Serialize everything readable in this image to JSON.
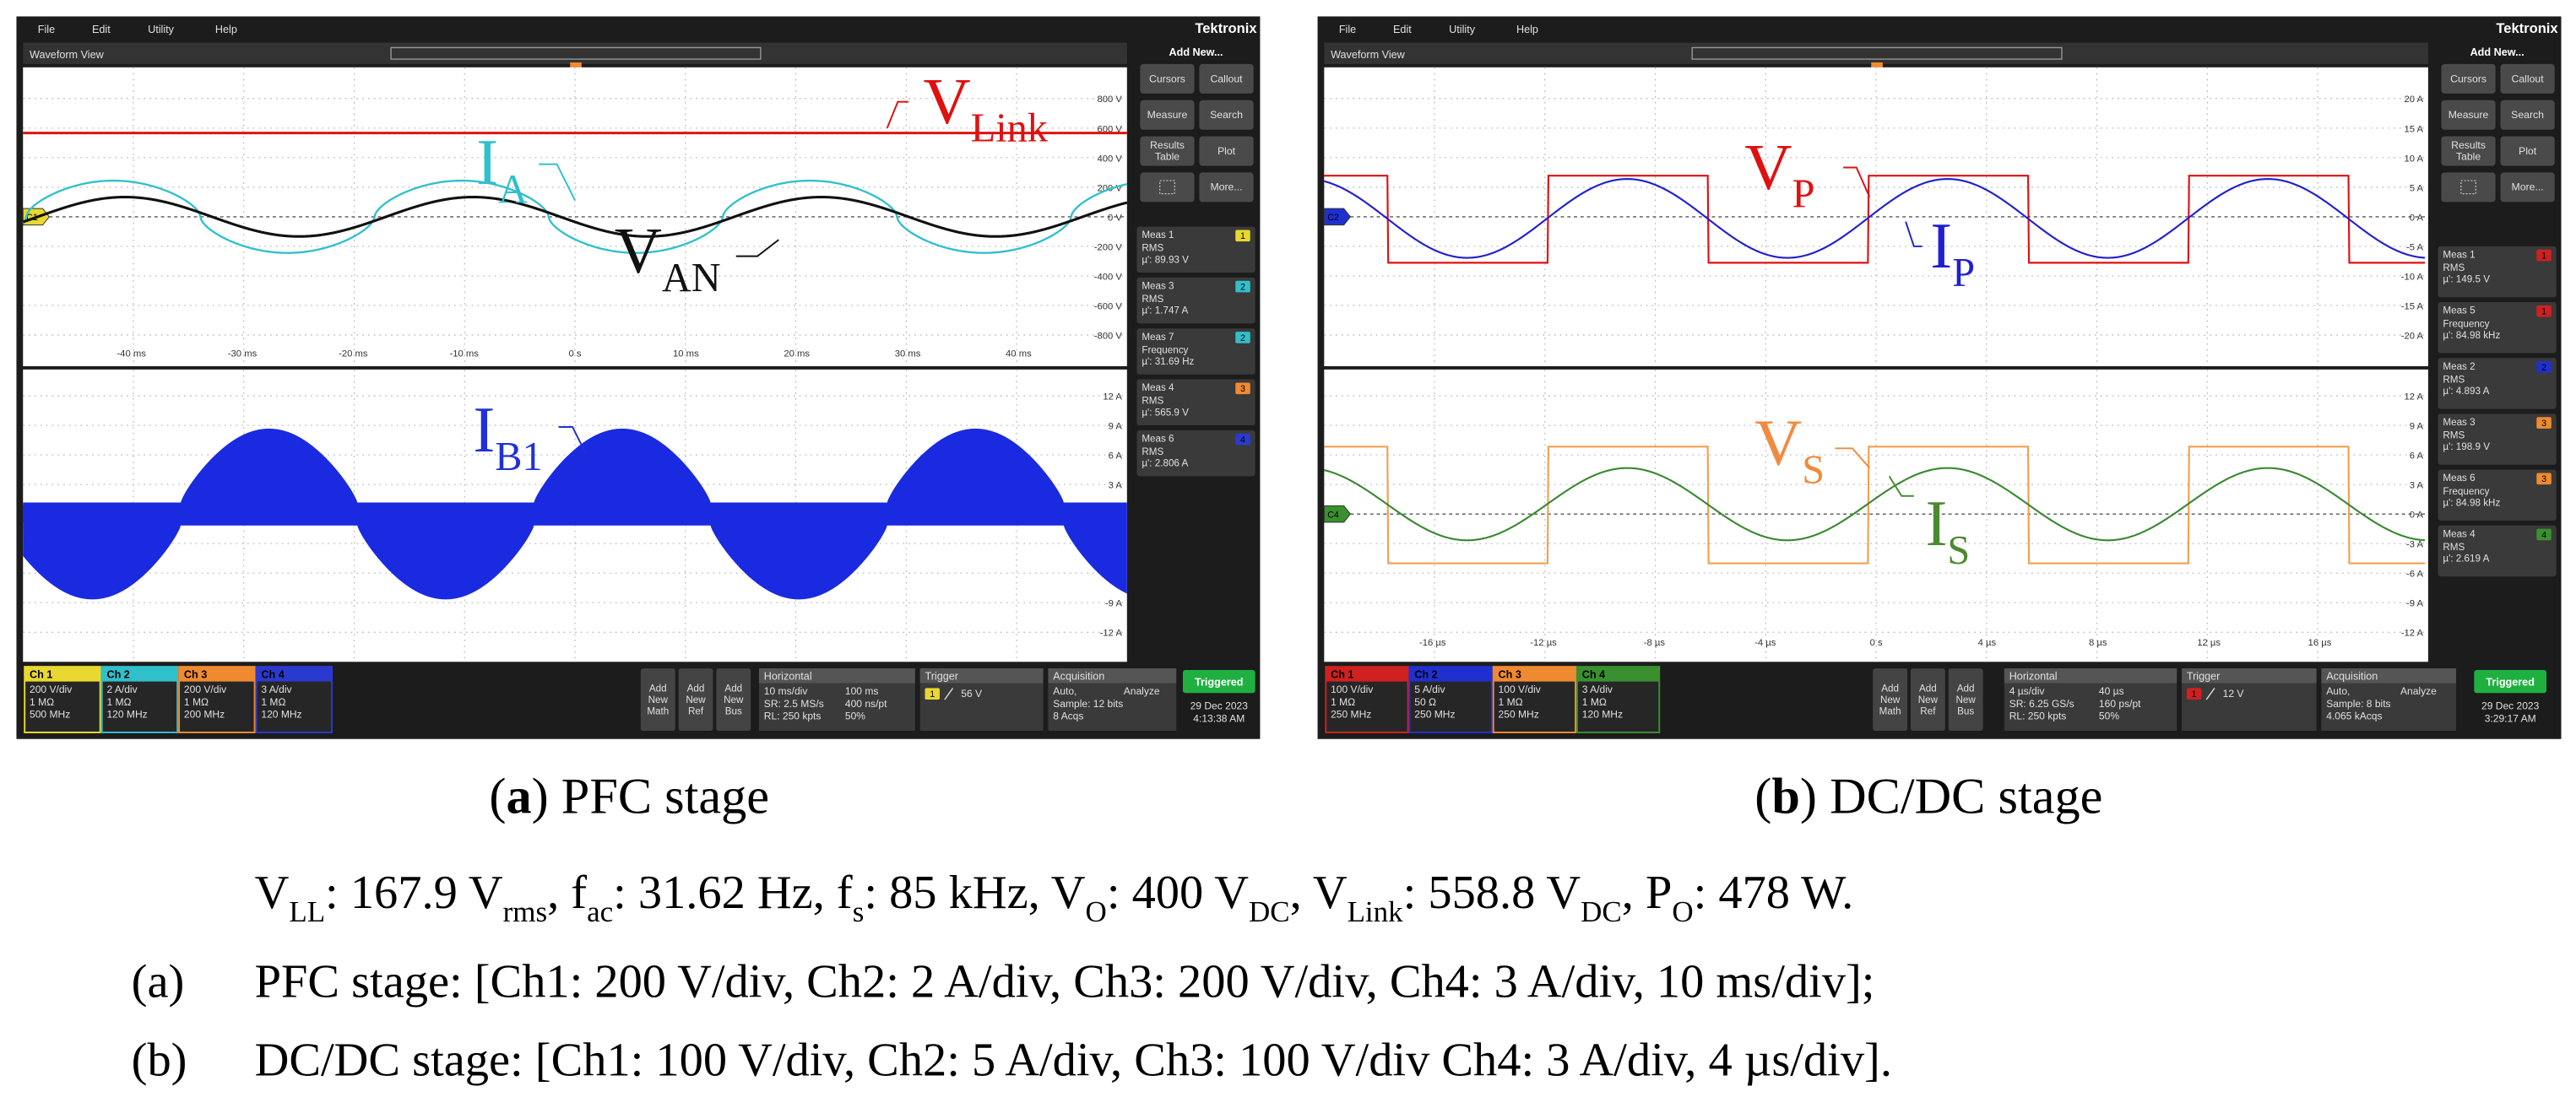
{
  "panels": [
    {
      "menu": [
        "File",
        "Edit",
        "Utility",
        "Help"
      ],
      "brand": "Tektronix",
      "view": "Waveform View",
      "upper_ticks": [
        "800 V",
        "600 V",
        "400 V",
        "200 V",
        "0 V",
        "-200 V",
        "-400 V",
        "-600 V",
        "-800 V"
      ],
      "lower_ticks": [
        "12 A",
        "9 A",
        "6 A",
        "3 A",
        "-9 A",
        "-12 A"
      ],
      "time_ticks": [
        "-40 ms",
        "-30 ms",
        "-20 ms",
        "-10 ms",
        "0 s",
        "10 ms",
        "20 ms",
        "30 ms",
        "40 ms"
      ],
      "markers": [
        "C1",
        "C4"
      ],
      "annotations": [
        [
          {
            "t": "V"
          },
          {
            "s": "Link"
          }
        ],
        [
          {
            "t": "I"
          },
          {
            "s": "A"
          }
        ],
        [
          {
            "t": "V"
          },
          {
            "s": "AN"
          }
        ],
        [
          {
            "t": "I"
          },
          {
            "s": "B1"
          }
        ]
      ],
      "add_new": "Add New...",
      "buttons": [
        [
          "Cursors"
        ],
        [
          "Callout"
        ],
        [
          "Measure"
        ],
        [
          "Search"
        ],
        [
          "Results",
          "Table"
        ],
        [
          "Plot"
        ],
        [
          "More..."
        ]
      ],
      "meas": [
        {
          "name": "Meas 1",
          "badge": "1",
          "lines": [
            "RMS",
            "µ': 89.93 V"
          ]
        },
        {
          "name": "Meas 3",
          "badge": "2",
          "lines": [
            "RMS",
            "µ': 1.747 A"
          ]
        },
        {
          "name": "Meas 7",
          "badge": "2",
          "lines": [
            "Frequency",
            "µ': 31.69 Hz"
          ]
        },
        {
          "name": "Meas 4",
          "badge": "3",
          "lines": [
            "RMS",
            "µ': 565.9 V"
          ]
        },
        {
          "name": "Meas 6",
          "badge": "4",
          "lines": [
            "RMS",
            "µ': 2.806 A"
          ]
        }
      ],
      "channels": [
        {
          "name": "Ch 1",
          "lines": [
            "200 V/div",
            "1 MΩ",
            "500 MHz"
          ]
        },
        {
          "name": "Ch 2",
          "lines": [
            "2 A/div",
            "1 MΩ",
            "120 MHz"
          ]
        },
        {
          "name": "Ch 3",
          "lines": [
            "200 V/div",
            "1 MΩ",
            "200 MHz"
          ]
        },
        {
          "name": "Ch 4",
          "lines": [
            "3 A/div",
            "1 MΩ",
            "120 MHz"
          ]
        }
      ],
      "add_buttons": [
        [
          "Add",
          "New",
          "Math"
        ],
        [
          "Add",
          "New",
          "Ref"
        ],
        [
          "Add",
          "New",
          "Bus"
        ]
      ],
      "horizontal": {
        "title": "Horizontal",
        "lines": [
          [
            "10 ms/div",
            "100 ms"
          ],
          [
            "SR: 2.5 MS/s",
            "400 ns/pt"
          ],
          [
            "RL: 250 kpts",
            "50%"
          ]
        ]
      },
      "trigger": {
        "title": "Trigger",
        "source": "1",
        "level": "56 V"
      },
      "acquisition": {
        "title": "Acquisition",
        "lines": [
          [
            "Auto,",
            "Analyze"
          ],
          [
            "Sample: 12 bits"
          ],
          [
            "8 Acqs"
          ]
        ]
      },
      "status": "Triggered",
      "date": "29 Dec 2023",
      "time": "4:13:38 AM",
      "caption": [
        {
          "t": "("
        },
        {
          "b": "a"
        },
        {
          "t": ") PFC stage"
        }
      ]
    },
    {
      "menu": [
        "File",
        "Edit",
        "Utility",
        "Help"
      ],
      "brand": "Tektronix",
      "view": "Waveform View",
      "upper_ticks": [
        "20 A",
        "15 A",
        "10 A",
        "5 A",
        "0 A",
        "-5 A",
        "-10 A",
        "-15 A",
        "-20 A"
      ],
      "lower_ticks": [
        "12 A",
        "9 A",
        "6 A",
        "3 A",
        "0 A",
        "-3 A",
        "-6 A",
        "-9 A",
        "-12 A"
      ],
      "time_ticks": [
        "-16 µs",
        "-12 µs",
        "-8 µs",
        "-4 µs",
        "0 s",
        "4 µs",
        "8 µs",
        "12 µs",
        "16 µs"
      ],
      "markers": [
        "C2",
        "C4"
      ],
      "annotations": [
        [
          {
            "t": "V"
          },
          {
            "s": "P"
          }
        ],
        [
          {
            "t": "I"
          },
          {
            "s": "P"
          }
        ],
        [
          {
            "t": "V"
          },
          {
            "s": "S"
          }
        ],
        [
          {
            "t": "I"
          },
          {
            "s": "S"
          }
        ]
      ],
      "add_new": "Add New...",
      "buttons": [
        [
          "Cursors"
        ],
        [
          "Callout"
        ],
        [
          "Measure"
        ],
        [
          "Search"
        ],
        [
          "Results",
          "Table"
        ],
        [
          "Plot"
        ],
        [
          "More..."
        ]
      ],
      "meas": [
        {
          "name": "Meas 1",
          "badge": "1",
          "lines": [
            "RMS",
            "µ': 149.5 V"
          ]
        },
        {
          "name": "Meas 5",
          "badge": "1",
          "lines": [
            "Frequency",
            "µ': 84.98 kHz"
          ]
        },
        {
          "name": "Meas 2",
          "badge": "2",
          "lines": [
            "RMS",
            "µ': 4.893 A"
          ]
        },
        {
          "name": "Meas 3",
          "badge": "3",
          "lines": [
            "RMS",
            "µ': 198.9 V"
          ]
        },
        {
          "name": "Meas 6",
          "badge": "3",
          "lines": [
            "Frequency",
            "µ': 84.98 kHz"
          ]
        },
        {
          "name": "Meas 4",
          "badge": "4",
          "lines": [
            "RMS",
            "µ': 2.619 A"
          ]
        }
      ],
      "channels": [
        {
          "name": "Ch 1",
          "lines": [
            "100 V/div",
            "1 MΩ",
            "250 MHz"
          ]
        },
        {
          "name": "Ch 2",
          "lines": [
            "5 A/div",
            "50 Ω",
            "250 MHz"
          ]
        },
        {
          "name": "Ch 3",
          "lines": [
            "100 V/div",
            "1 MΩ",
            "250 MHz"
          ]
        },
        {
          "name": "Ch 4",
          "lines": [
            "3 A/div",
            "1 MΩ",
            "120 MHz"
          ]
        }
      ],
      "add_buttons": [
        [
          "Add",
          "New",
          "Math"
        ],
        [
          "Add",
          "New",
          "Ref"
        ],
        [
          "Add",
          "New",
          "Bus"
        ]
      ],
      "horizontal": {
        "title": "Horizontal",
        "lines": [
          [
            "4 µs/div",
            "40 µs"
          ],
          [
            "SR: 6.25 GS/s",
            "160 ps/pt"
          ],
          [
            "RL: 250 kpts",
            "50%"
          ]
        ]
      },
      "trigger": {
        "title": "Trigger",
        "source": "1",
        "level": "12 V"
      },
      "acquisition": {
        "title": "Acquisition",
        "lines": [
          [
            "Auto,",
            "Analyze"
          ],
          [
            "Sample: 8 bits"
          ],
          [
            "4.065 kAcqs"
          ]
        ]
      },
      "status": "Triggered",
      "date": "29 Dec 2023",
      "time": "3:29:17 AM",
      "caption": [
        {
          "t": "("
        },
        {
          "b": "b"
        },
        {
          "t": ") DC/DC stage"
        }
      ]
    }
  ],
  "summary": [
    {
      "t": "V"
    },
    {
      "s": "LL"
    },
    {
      "t": ": 167.9 V"
    },
    {
      "s": "rms"
    },
    {
      "t": ", f"
    },
    {
      "s": "ac"
    },
    {
      "t": ": 31.62 Hz, f"
    },
    {
      "s": "s"
    },
    {
      "t": ": 85 kHz, V"
    },
    {
      "s": "O"
    },
    {
      "t": ": 400 V"
    },
    {
      "s": "DC"
    },
    {
      "t": ", V"
    },
    {
      "s": "Link"
    },
    {
      "t": ": 558.8 V"
    },
    {
      "s": "DC"
    },
    {
      "t": ", P"
    },
    {
      "s": "O"
    },
    {
      "t": ": 478 W."
    }
  ],
  "notes": [
    {
      "label": "(a)",
      "text": "PFC stage: [Ch1: 200 V/div, Ch2: 2 A/div, Ch3: 200 V/div, Ch4: 3 A/div, 10 ms/div];"
    },
    {
      "label": "(b)",
      "text": "DC/DC stage: [Ch1: 100 V/div, Ch2: 5 A/div, Ch3: 100 V/div Ch4: 3 A/div, 4 µs/div]."
    }
  ]
}
